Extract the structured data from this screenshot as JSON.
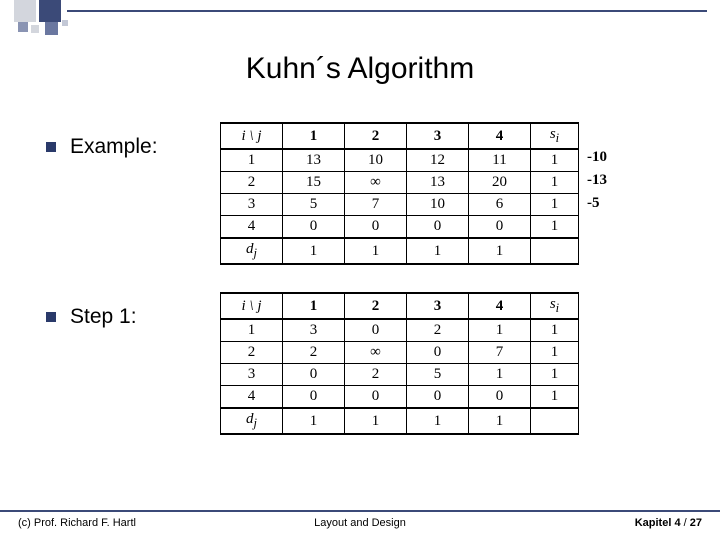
{
  "title": "Kuhn´s Algorithm",
  "labels": {
    "example": "Example:",
    "step1": "Step 1:"
  },
  "headers": {
    "ij": "i \\ j",
    "cols": [
      "1",
      "2",
      "3",
      "4"
    ],
    "si": "s",
    "si_sub": "i",
    "dj": "d",
    "dj_sub": "j"
  },
  "table1": {
    "rows": [
      {
        "r": "1",
        "v": [
          "13",
          "10",
          "12",
          "11"
        ],
        "s": "1"
      },
      {
        "r": "2",
        "v": [
          "15",
          "∞",
          "13",
          "20"
        ],
        "s": "1"
      },
      {
        "r": "3",
        "v": [
          "5",
          "7",
          "10",
          "6"
        ],
        "s": "1"
      },
      {
        "r": "4",
        "v": [
          "0",
          "0",
          "0",
          "0"
        ],
        "s": "1"
      }
    ],
    "dj": [
      "1",
      "1",
      "1",
      "1"
    ],
    "side": [
      "-10",
      "-13",
      "-5"
    ]
  },
  "table2": {
    "rows": [
      {
        "r": "1",
        "v": [
          "3",
          "0",
          "2",
          "1"
        ],
        "s": "1"
      },
      {
        "r": "2",
        "v": [
          "2",
          "∞",
          "0",
          "7"
        ],
        "s": "1"
      },
      {
        "r": "3",
        "v": [
          "0",
          "2",
          "5",
          "1"
        ],
        "s": "1"
      },
      {
        "r": "4",
        "v": [
          "0",
          "0",
          "0",
          "0"
        ],
        "s": "1"
      }
    ],
    "dj": [
      "1",
      "1",
      "1",
      "1"
    ],
    "side": []
  },
  "footer": {
    "left": "(c) Prof. Richard F. Hartl",
    "mid": "Layout and Design",
    "right_a": "Kapitel 4",
    "right_b": " / ",
    "right_c": "27"
  }
}
